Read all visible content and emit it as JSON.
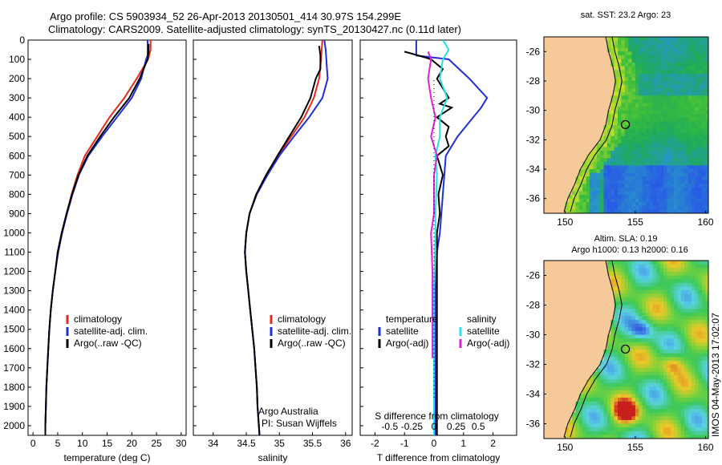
{
  "title": {
    "line1": "Argo profile: CS 5903934_52 26-Apr-2013 20130501_414 30.97S 154.299E",
    "line2": "Climatology: CARS2009. Satellite-adjusted climatology: synTS_20130427.nc (0.11d later)"
  },
  "footer": {
    "argo_australia": "Argo Australia",
    "pi": "PI: Susan Wijffels",
    "imos_stamp": "IMOS 04-May-2013 17:02:07"
  },
  "colors": {
    "climatology": "#e8291c",
    "satellite": "#1f2fd6",
    "argo": "#000000",
    "sal_satellite": "#28e0e8",
    "sal_argo": "#e020d8",
    "land": "#f6c99a"
  },
  "chart_data": [
    {
      "type": "line",
      "xlabel": "temperature (deg C)",
      "xlim": [
        -1,
        31
      ],
      "xticks": [
        "0",
        "5",
        "10",
        "15",
        "20",
        "25",
        "30"
      ],
      "ylim": [
        2050,
        0
      ],
      "yticks": [
        "0",
        "100",
        "200",
        "300",
        "400",
        "500",
        "600",
        "700",
        "800",
        "900",
        "1000",
        "1100",
        "1200",
        "1300",
        "1400",
        "1500",
        "1600",
        "1700",
        "1800",
        "1900",
        "2000"
      ],
      "legend": [
        "climatology",
        "satellite-adj. clim.",
        "Argo(..raw -QC)"
      ],
      "series": [
        {
          "name": "climatology",
          "color": "#e8291c",
          "points": [
            [
              23.8,
              0
            ],
            [
              23.8,
              50
            ],
            [
              23.3,
              100
            ],
            [
              21,
              200
            ],
            [
              18.5,
              300
            ],
            [
              15.5,
              400
            ],
            [
              13,
              500
            ],
            [
              10.5,
              600
            ],
            [
              9,
              700
            ],
            [
              7.8,
              800
            ],
            [
              6.8,
              900
            ],
            [
              5.8,
              1000
            ],
            [
              5,
              1100
            ],
            [
              4.5,
              1200
            ],
            [
              4,
              1300
            ],
            [
              3.6,
              1400
            ],
            [
              3.3,
              1500
            ],
            [
              3.1,
              1600
            ],
            [
              2.9,
              1700
            ],
            [
              2.7,
              1800
            ],
            [
              2.6,
              1900
            ],
            [
              2.5,
              2000
            ],
            [
              2.5,
              2050
            ]
          ]
        },
        {
          "name": "satellite-adj. clim.",
          "color": "#1f2fd6",
          "points": [
            [
              23.2,
              0
            ],
            [
              23.2,
              80
            ],
            [
              22.9,
              100
            ],
            [
              21.9,
              200
            ],
            [
              20,
              300
            ],
            [
              17,
              400
            ],
            [
              14,
              500
            ],
            [
              11.2,
              600
            ],
            [
              9.3,
              700
            ],
            [
              8,
              800
            ],
            [
              6.9,
              900
            ],
            [
              5.9,
              1000
            ],
            [
              5.1,
              1100
            ],
            [
              4.5,
              1200
            ],
            [
              4,
              1300
            ],
            [
              3.6,
              1400
            ],
            [
              3.3,
              1500
            ],
            [
              3.1,
              1600
            ],
            [
              2.9,
              1700
            ],
            [
              2.7,
              1800
            ],
            [
              2.6,
              1900
            ],
            [
              2.5,
              2000
            ],
            [
              2.5,
              2050
            ]
          ]
        },
        {
          "name": "Argo(..raw -QC)",
          "color": "#000000",
          "points": [
            [
              23.4,
              20
            ],
            [
              23.4,
              60
            ],
            [
              23.2,
              100
            ],
            [
              21.6,
              200
            ],
            [
              19.5,
              300
            ],
            [
              16.4,
              400
            ],
            [
              13.6,
              500
            ],
            [
              11,
              600
            ],
            [
              9.2,
              700
            ],
            [
              7.9,
              800
            ],
            [
              6.8,
              900
            ],
            [
              5.8,
              1000
            ],
            [
              5,
              1100
            ],
            [
              4.5,
              1200
            ],
            [
              4,
              1300
            ],
            [
              3.6,
              1400
            ],
            [
              3.3,
              1500
            ],
            [
              3.1,
              1600
            ],
            [
              2.9,
              1700
            ],
            [
              2.7,
              1800
            ],
            [
              2.6,
              1900
            ],
            [
              2.5,
              2000
            ],
            [
              2.5,
              2050
            ]
          ]
        }
      ]
    },
    {
      "type": "line",
      "xlabel": "salinity",
      "xlim": [
        33.7,
        36.1
      ],
      "xticks": [
        "34",
        "34.5",
        "35",
        "35.5",
        "36"
      ],
      "ylim": [
        2050,
        0
      ],
      "legend": [
        "climatology",
        "satellite-adj. clim.",
        "Argo(..raw -QC)"
      ],
      "series": [
        {
          "name": "climatology",
          "color": "#e8291c",
          "points": [
            [
              35.65,
              0
            ],
            [
              35.64,
              50
            ],
            [
              35.63,
              100
            ],
            [
              35.6,
              200
            ],
            [
              35.52,
              300
            ],
            [
              35.38,
              400
            ],
            [
              35.18,
              500
            ],
            [
              34.98,
              600
            ],
            [
              34.8,
              700
            ],
            [
              34.65,
              800
            ],
            [
              34.55,
              900
            ],
            [
              34.5,
              1000
            ],
            [
              34.48,
              1100
            ],
            [
              34.5,
              1200
            ],
            [
              34.53,
              1300
            ],
            [
              34.56,
              1400
            ],
            [
              34.59,
              1500
            ],
            [
              34.62,
              1600
            ],
            [
              34.64,
              1700
            ],
            [
              34.66,
              1800
            ],
            [
              34.67,
              1900
            ],
            [
              34.69,
              2000
            ],
            [
              34.7,
              2050
            ]
          ]
        },
        {
          "name": "satellite-adj. clim.",
          "color": "#1f2fd6",
          "points": [
            [
              35.68,
              0
            ],
            [
              35.7,
              50
            ],
            [
              35.72,
              150
            ],
            [
              35.73,
              200
            ],
            [
              35.65,
              300
            ],
            [
              35.45,
              400
            ],
            [
              35.22,
              500
            ],
            [
              35,
              600
            ],
            [
              34.82,
              700
            ],
            [
              34.66,
              800
            ],
            [
              34.55,
              900
            ],
            [
              34.5,
              1000
            ],
            [
              34.48,
              1100
            ],
            [
              34.5,
              1200
            ],
            [
              34.53,
              1300
            ],
            [
              34.56,
              1400
            ],
            [
              34.59,
              1500
            ],
            [
              34.62,
              1600
            ],
            [
              34.64,
              1700
            ],
            [
              34.66,
              1800
            ],
            [
              34.67,
              1900
            ],
            [
              34.69,
              2000
            ],
            [
              34.7,
              2050
            ]
          ]
        },
        {
          "name": "Argo(..raw -QC)",
          "color": "#000000",
          "points": [
            [
              35.6,
              30
            ],
            [
              35.62,
              80
            ],
            [
              35.62,
              150
            ],
            [
              35.55,
              200
            ],
            [
              35.47,
              300
            ],
            [
              35.33,
              400
            ],
            [
              35.15,
              500
            ],
            [
              34.97,
              600
            ],
            [
              34.8,
              700
            ],
            [
              34.65,
              800
            ],
            [
              34.55,
              900
            ],
            [
              34.5,
              1000
            ],
            [
              34.48,
              1100
            ],
            [
              34.5,
              1200
            ],
            [
              34.53,
              1300
            ],
            [
              34.56,
              1400
            ],
            [
              34.59,
              1500
            ],
            [
              34.62,
              1600
            ],
            [
              34.64,
              1700
            ],
            [
              34.66,
              1800
            ],
            [
              34.67,
              1900
            ],
            [
              34.69,
              2000
            ],
            [
              34.7,
              2050
            ]
          ]
        }
      ]
    },
    {
      "type": "line",
      "xlabel": "T difference from climatology",
      "xlabel_top": "S difference from climatology",
      "xlim": [
        -2.5,
        2.8
      ],
      "xticks": [
        "-2",
        "-1",
        "0",
        "1",
        "2"
      ],
      "xticks_top": [
        "-0.5",
        "-0.25",
        "0",
        "0.25",
        "0.5"
      ],
      "ylim": [
        2050,
        0
      ],
      "legend_headers": [
        "temperature",
        "salinity"
      ],
      "legend_temperature": [
        "satellite",
        "Argo(-adj)"
      ],
      "legend_salinity": [
        "satellite",
        "Argo(-adj)"
      ],
      "series": [
        {
          "name": "temperature satellite",
          "color": "#1f2fd6",
          "points": [
            [
              -0.6,
              0
            ],
            [
              -0.6,
              80
            ],
            [
              0.5,
              100
            ],
            [
              1.2,
              200
            ],
            [
              1.8,
              300
            ],
            [
              1.6,
              350
            ],
            [
              0.8,
              500
            ],
            [
              0.4,
              600
            ],
            [
              0.35,
              700
            ],
            [
              0.3,
              800
            ],
            [
              0.25,
              900
            ],
            [
              0.2,
              1000
            ],
            [
              0.1,
              1100
            ],
            [
              0.05,
              1300
            ],
            [
              0.05,
              1500
            ],
            [
              0.05,
              2050
            ]
          ]
        },
        {
          "name": "temperature Argo(-adj)",
          "color": "#000000",
          "points": [
            [
              -1.0,
              60
            ],
            [
              -0.3,
              90
            ],
            [
              -0.1,
              100
            ],
            [
              0.3,
              150
            ],
            [
              0.1,
              200
            ],
            [
              0.3,
              250
            ],
            [
              0.5,
              300
            ],
            [
              0.2,
              330
            ],
            [
              0.6,
              350
            ],
            [
              0.1,
              400
            ],
            [
              0.5,
              450
            ],
            [
              0.4,
              500
            ],
            [
              0.5,
              550
            ],
            [
              0.1,
              600
            ],
            [
              0.3,
              700
            ],
            [
              0.15,
              800
            ],
            [
              0.2,
              900
            ],
            [
              0.1,
              1000
            ],
            [
              0.1,
              1300
            ],
            [
              0.1,
              1500
            ],
            [
              0.1,
              2050
            ]
          ]
        },
        {
          "name": "salinity satellite",
          "color": "#28e0e8",
          "points": [
            [
              0.3,
              0
            ],
            [
              0.5,
              50
            ],
            [
              0.3,
              100
            ],
            [
              0.2,
              200
            ],
            [
              0.45,
              300
            ],
            [
              0.2,
              400
            ],
            [
              0.2,
              500
            ],
            [
              0.05,
              600
            ],
            [
              0.1,
              700
            ],
            [
              0.05,
              900
            ],
            [
              0.05,
              1000
            ],
            [
              0,
              1300
            ],
            [
              0,
              2050
            ]
          ]
        },
        {
          "name": "salinity Argo(-adj)",
          "color": "#e020d8",
          "points": [
            [
              -0.2,
              60
            ],
            [
              -0.1,
              100
            ],
            [
              -0.2,
              200
            ],
            [
              -0.1,
              300
            ],
            [
              0.05,
              400
            ],
            [
              -0.1,
              500
            ],
            [
              0.1,
              600
            ],
            [
              0,
              700
            ],
            [
              0,
              900
            ],
            [
              -0.1,
              1000
            ],
            [
              -0.05,
              1200
            ],
            [
              -0.05,
              1500
            ],
            [
              -0.05,
              1650
            ]
          ]
        }
      ]
    },
    {
      "type": "heatmap",
      "title": "sat. SST: 23.2 Argo: 23",
      "xlim": [
        148.5,
        160.2
      ],
      "ylim": [
        -37,
        -25
      ],
      "xticks": [
        "150",
        "155",
        "160"
      ],
      "yticks": [
        "-26",
        "-28",
        "-30",
        "-32",
        "-34",
        "-36"
      ],
      "marker": {
        "lon": 154.299,
        "lat": -30.97
      }
    },
    {
      "type": "heatmap",
      "title": "Altim. SLA: 0.19",
      "subtitle": "Argo h1000: 0.13 h2000: 0.16",
      "xlim": [
        148.5,
        160.2
      ],
      "ylim": [
        -37,
        -25
      ],
      "xticks": [
        "150",
        "155",
        "160"
      ],
      "yticks": [
        "-26",
        "-28",
        "-30",
        "-32",
        "-34",
        "-36"
      ],
      "marker": {
        "lon": 154.299,
        "lat": -30.97
      }
    }
  ]
}
